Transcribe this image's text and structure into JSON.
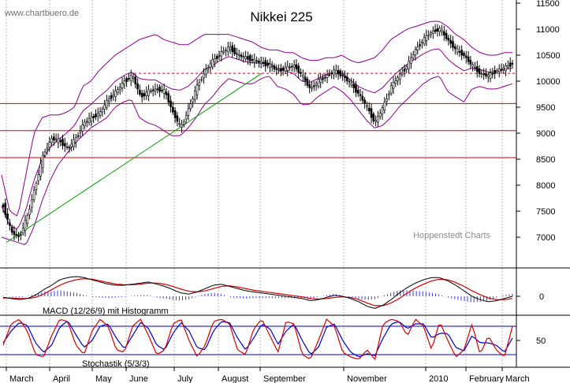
{
  "chart_data": [
    {
      "type": "candlestick",
      "title": "Nikkei 225",
      "source": "www.chartbuero.de",
      "credit": "Hoppenstedt Charts",
      "ylim": [
        6500,
        11500
      ],
      "yticks": [
        7000,
        7500,
        8000,
        8500,
        9000,
        9500,
        10000,
        10500,
        11000,
        11500
      ],
      "months": [
        "March",
        "April",
        "May",
        "June",
        "July",
        "August",
        "September",
        "November",
        "2010",
        "February",
        "March"
      ],
      "horizontal_lines": [
        {
          "value": 10150,
          "style": "dashed",
          "color": "#d40000"
        },
        {
          "value": 9570,
          "style": "solid",
          "color": "#d40000"
        },
        {
          "value": 9050,
          "style": "solid",
          "color": "#d40000"
        },
        {
          "value": 8530,
          "style": "solid",
          "color": "#d40000"
        }
      ],
      "trendline": {
        "from": 6900,
        "to": 10150,
        "color": "#00a000"
      },
      "price_path": [
        7600,
        7100,
        7000,
        7400,
        8000,
        8600,
        8900,
        8850,
        8700,
        8900,
        9200,
        9300,
        9400,
        9650,
        9800,
        10000,
        10100,
        9700,
        9800,
        9850,
        9800,
        9400,
        9100,
        9500,
        9900,
        10200,
        10400,
        10550,
        10650,
        10500,
        10450,
        10400,
        10350,
        10300,
        10200,
        10250,
        10300,
        10100,
        9850,
        10000,
        10100,
        10200,
        10100,
        9950,
        9750,
        9500,
        9200,
        9500,
        9900,
        10100,
        10300,
        10600,
        10800,
        10950,
        11000,
        10800,
        10600,
        10500,
        10300,
        10150,
        10100,
        10200,
        10250,
        10350
      ],
      "bollinger": {
        "upper": [
          8200,
          7500,
          7400,
          8200,
          9000,
          9300,
          9350,
          9350,
          9400,
          9500,
          9900,
          10000,
          10200,
          10350,
          10500,
          10600,
          10700,
          10800,
          10850,
          10900,
          10800,
          10750,
          10700,
          10700,
          10800,
          10900,
          10900,
          10900,
          10900,
          10850,
          10800,
          10750,
          10650,
          10600,
          10600,
          10550,
          10550,
          10450,
          10400,
          10400,
          10450,
          10450,
          10500,
          10400,
          10350,
          10400,
          10450,
          10600,
          10800,
          10900,
          11000,
          11050,
          11100,
          11150,
          11150,
          11050,
          10900,
          10800,
          10650,
          10550,
          10500,
          10500,
          10550,
          10550
        ],
        "lower": [
          7000,
          6950,
          6900,
          6850,
          7200,
          7700,
          8100,
          8400,
          8600,
          8800,
          8950,
          9100,
          9200,
          9300,
          9500,
          9600,
          9650,
          9300,
          9200,
          9150,
          9050,
          8950,
          8950,
          9100,
          9300,
          9550,
          9700,
          9900,
          10050,
          10000,
          9950,
          9950,
          10050,
          10100,
          9900,
          9850,
          9750,
          9550,
          9550,
          9700,
          9800,
          9900,
          9800,
          9650,
          9450,
          9250,
          9100,
          9150,
          9300,
          9500,
          9650,
          9800,
          9950,
          10050,
          10100,
          9800,
          9700,
          9600,
          9850,
          9900,
          9850,
          9850,
          9900,
          9950
        ]
      }
    },
    {
      "type": "line",
      "title": "MACD (12/26/9) mit Histogramm",
      "yticks": [
        0
      ],
      "macd": [
        -2,
        -4,
        -6,
        -4,
        2,
        12,
        20,
        30,
        34,
        36,
        34,
        30,
        26,
        22,
        20,
        20,
        22,
        24,
        26,
        22,
        18,
        12,
        6,
        4,
        8,
        14,
        20,
        22,
        18,
        14,
        10,
        8,
        6,
        4,
        2,
        0,
        -2,
        -4,
        -8,
        -6,
        -2,
        2,
        0,
        -4,
        -10,
        -18,
        -22,
        -16,
        -6,
        6,
        16,
        24,
        30,
        34,
        34,
        28,
        20,
        10,
        0,
        -6,
        -10,
        -8,
        -4,
        0
      ],
      "signal": [
        -3,
        -3,
        -4,
        -4,
        -2,
        4,
        12,
        20,
        26,
        30,
        32,
        31,
        28,
        25,
        22,
        21,
        21,
        22,
        24,
        24,
        22,
        18,
        13,
        9,
        8,
        10,
        14,
        18,
        19,
        17,
        14,
        11,
        9,
        7,
        5,
        3,
        1,
        -1,
        -4,
        -5,
        -4,
        -2,
        -1,
        -2,
        -6,
        -12,
        -17,
        -17,
        -12,
        -4,
        6,
        15,
        22,
        28,
        31,
        30,
        25,
        18,
        10,
        3,
        -3,
        -6,
        -6,
        -4
      ]
    },
    {
      "type": "line",
      "title": "Stochastik (5/3/3)",
      "yticks": [
        50
      ],
      "levels": [
        80,
        20
      ],
      "k": [
        40,
        85,
        95,
        70,
        20,
        15,
        60,
        95,
        90,
        40,
        20,
        70,
        95,
        80,
        30,
        25,
        80,
        95,
        60,
        20,
        30,
        85,
        95,
        50,
        15,
        40,
        90,
        95,
        85,
        30,
        20,
        75,
        95,
        60,
        25,
        90,
        85,
        20,
        10,
        50,
        95,
        80,
        25,
        15,
        10,
        30,
        10,
        85,
        95,
        90,
        60,
        95,
        80,
        30,
        90,
        50,
        15,
        30,
        85,
        20,
        60,
        30,
        15,
        80
      ],
      "d": [
        45,
        70,
        88,
        82,
        45,
        25,
        40,
        78,
        92,
        62,
        35,
        50,
        80,
        85,
        55,
        32,
        60,
        88,
        75,
        40,
        30,
        65,
        88,
        70,
        35,
        30,
        70,
        90,
        88,
        55,
        30,
        55,
        85,
        75,
        42,
        70,
        85,
        50,
        20,
        35,
        78,
        85,
        50,
        25,
        15,
        22,
        18,
        55,
        85,
        90,
        75,
        85,
        85,
        55,
        65,
        65,
        35,
        28,
        60,
        45,
        45,
        40,
        25,
        55
      ]
    }
  ]
}
